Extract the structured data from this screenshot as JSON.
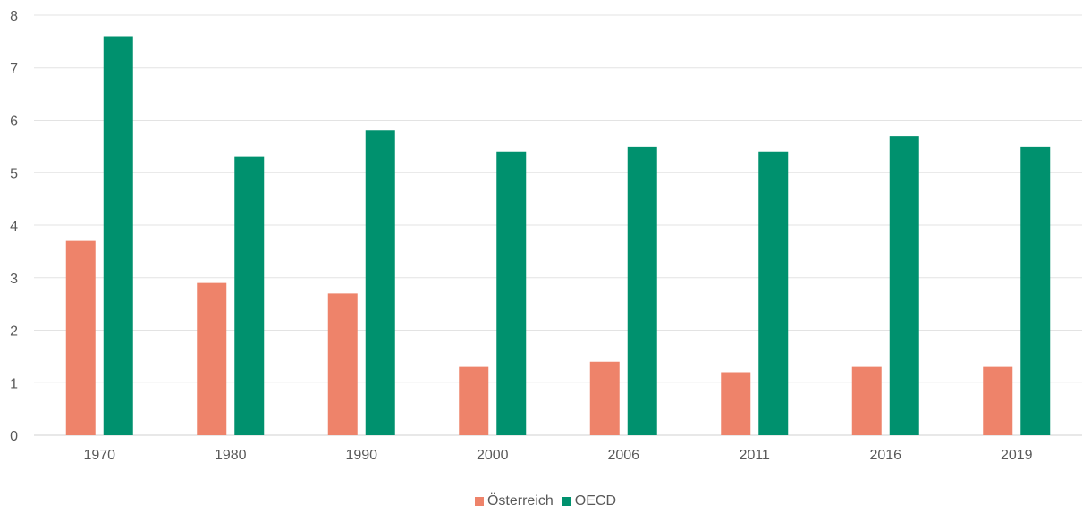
{
  "chart_data": {
    "type": "bar",
    "categories": [
      "1970",
      "1980",
      "1990",
      "2000",
      "2006",
      "2011",
      "2016",
      "2019"
    ],
    "series": [
      {
        "name": "Österreich",
        "color": "#EE836A",
        "values": [
          3.7,
          2.9,
          2.7,
          1.3,
          1.4,
          1.2,
          1.3,
          1.3
        ]
      },
      {
        "name": "OECD",
        "color": "#00916E",
        "values": [
          7.6,
          5.3,
          5.8,
          5.4,
          5.5,
          5.4,
          5.7,
          5.5
        ]
      }
    ],
    "ylim": [
      0,
      8
    ],
    "yticks": [
      0,
      1,
      2,
      3,
      4,
      5,
      6,
      7,
      8
    ],
    "grid": true,
    "legend_position": "bottom",
    "title": "",
    "xlabel": "",
    "ylabel": ""
  }
}
